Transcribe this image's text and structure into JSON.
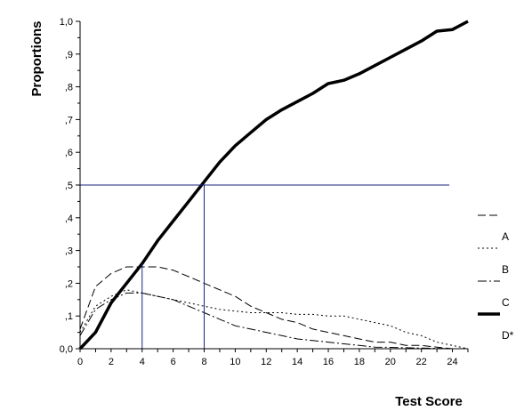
{
  "chart_data": {
    "type": "line",
    "xlabel": "Test Score",
    "ylabel": "Proportions",
    "xlim": [
      0,
      25
    ],
    "ylim": [
      0,
      1
    ],
    "x_ticks": [
      0,
      2,
      4,
      6,
      8,
      10,
      12,
      14,
      16,
      18,
      20,
      22,
      24
    ],
    "y_ticks": [
      "0,0",
      ",1",
      ",2",
      ",3",
      ",4",
      ",5",
      ",6",
      ",7",
      ",8",
      ",9",
      "1,0"
    ],
    "grid": false,
    "legend_position": "right",
    "series": [
      {
        "name": "A",
        "style": "long-dash",
        "color": "#000000",
        "x": [
          0,
          1,
          2,
          3,
          4,
          5,
          6,
          7,
          8,
          9,
          10,
          11,
          12,
          13,
          14,
          15,
          16,
          17,
          18,
          19,
          20,
          21,
          22,
          23,
          24,
          25
        ],
        "y": [
          0.06,
          0.19,
          0.23,
          0.25,
          0.25,
          0.25,
          0.24,
          0.22,
          0.2,
          0.18,
          0.16,
          0.13,
          0.11,
          0.09,
          0.08,
          0.06,
          0.05,
          0.04,
          0.03,
          0.02,
          0.02,
          0.01,
          0.01,
          0.005,
          0.0,
          0.0
        ]
      },
      {
        "name": "B",
        "style": "dotted",
        "color": "#000000",
        "x": [
          0,
          1,
          2,
          3,
          4,
          5,
          6,
          7,
          8,
          9,
          10,
          11,
          12,
          13,
          14,
          15,
          16,
          17,
          18,
          19,
          20,
          21,
          22,
          23,
          24,
          25
        ],
        "y": [
          0.05,
          0.13,
          0.16,
          0.18,
          0.17,
          0.16,
          0.15,
          0.14,
          0.13,
          0.12,
          0.115,
          0.11,
          0.11,
          0.11,
          0.105,
          0.105,
          0.1,
          0.1,
          0.09,
          0.08,
          0.07,
          0.05,
          0.04,
          0.02,
          0.01,
          0.0
        ]
      },
      {
        "name": "C",
        "style": "dash-dot",
        "color": "#000000",
        "x": [
          0,
          1,
          2,
          3,
          4,
          5,
          6,
          7,
          8,
          9,
          10,
          11,
          12,
          13,
          14,
          15,
          16,
          17,
          18,
          19,
          20,
          21,
          22,
          23,
          24,
          25
        ],
        "y": [
          0.04,
          0.12,
          0.15,
          0.17,
          0.17,
          0.16,
          0.15,
          0.13,
          0.11,
          0.09,
          0.07,
          0.06,
          0.05,
          0.04,
          0.03,
          0.025,
          0.02,
          0.015,
          0.01,
          0.005,
          0.004,
          0.003,
          0.002,
          0.001,
          0.0,
          0.0
        ]
      },
      {
        "name": "D*",
        "style": "thick",
        "color": "#000000",
        "x": [
          0,
          1,
          2,
          3,
          4,
          5,
          6,
          7,
          8,
          9,
          10,
          11,
          12,
          13,
          14,
          15,
          16,
          17,
          18,
          19,
          20,
          21,
          22,
          23,
          24,
          25
        ],
        "y": [
          0.0,
          0.05,
          0.14,
          0.2,
          0.26,
          0.33,
          0.39,
          0.45,
          0.51,
          0.57,
          0.62,
          0.66,
          0.7,
          0.73,
          0.755,
          0.78,
          0.81,
          0.82,
          0.84,
          0.865,
          0.89,
          0.915,
          0.94,
          0.97,
          0.975,
          1.0
        ]
      }
    ],
    "reference_lines": [
      {
        "type": "horizontal",
        "y": 0.5,
        "x_from": 0,
        "x_to": 23.8,
        "color": "#1a237e"
      },
      {
        "type": "vertical",
        "x": 4,
        "y_from": 0,
        "y_to": 0.26,
        "color": "#1a237e"
      },
      {
        "type": "vertical",
        "x": 8,
        "y_from": 0,
        "y_to": 0.5,
        "color": "#1a237e"
      }
    ]
  }
}
